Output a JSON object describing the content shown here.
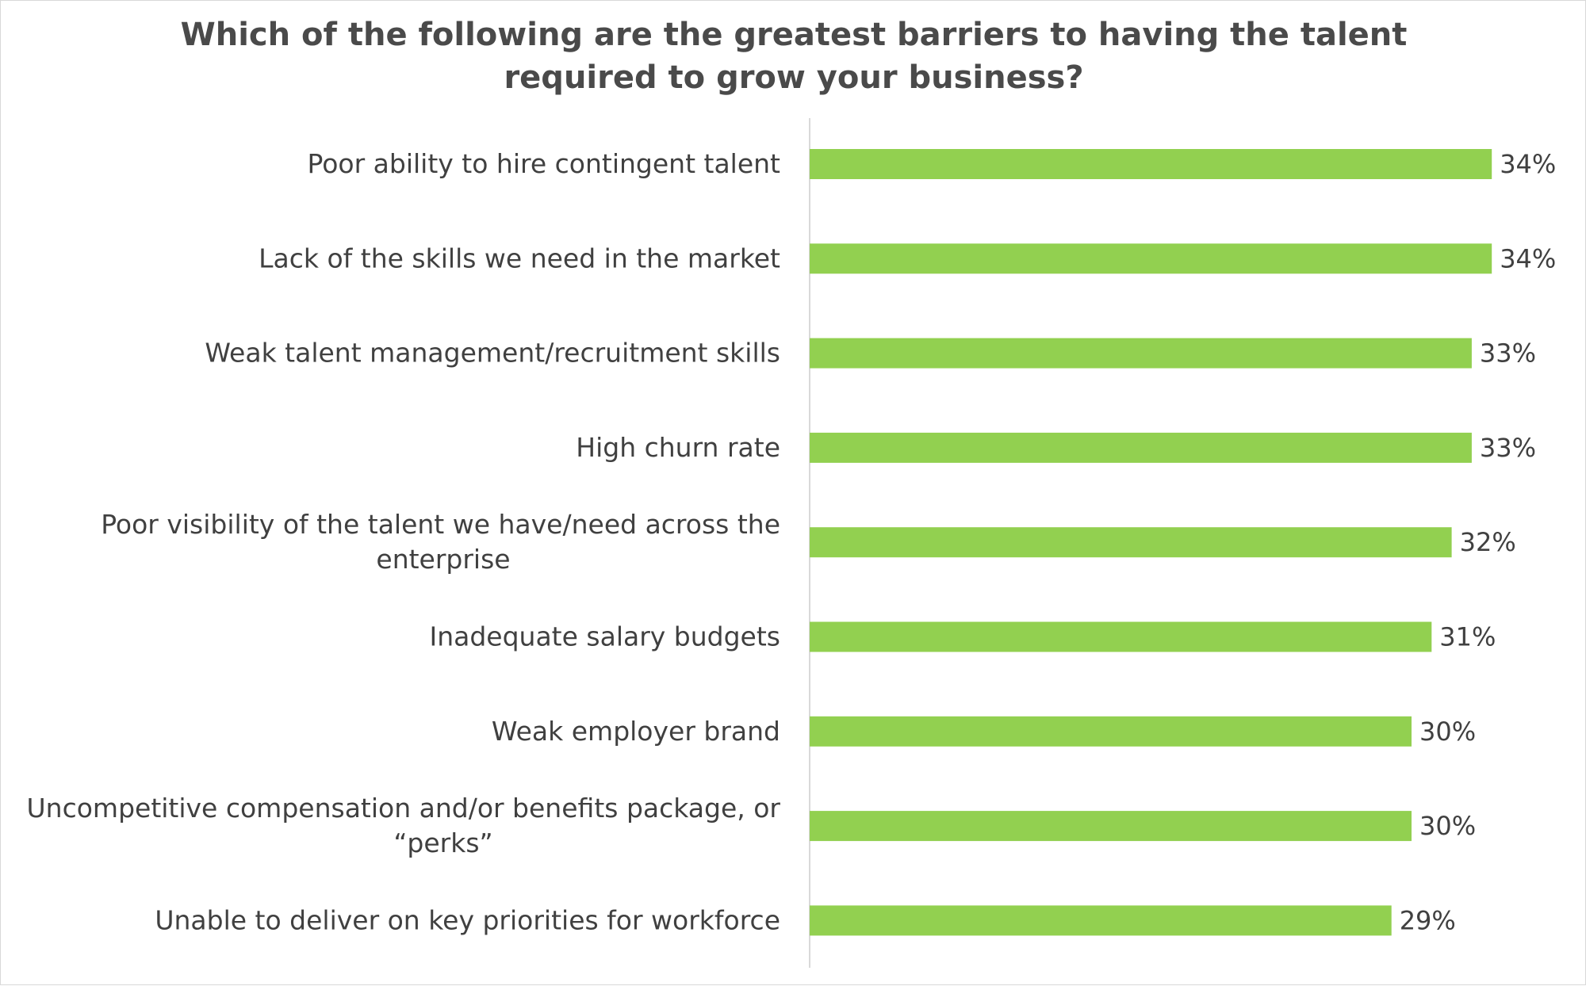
{
  "chart_data": {
    "type": "bar",
    "orientation": "horizontal",
    "title_lines": [
      "Which of the following are the greatest barriers to having the talent",
      "required to grow your business?"
    ],
    "categories": [
      "Poor ability to hire contingent talent",
      "Lack of the skills we need in the market",
      "Weak talent management/recruitment skills",
      "High churn rate",
      "Poor visibility of the talent we have/need across the enterprise",
      "Inadequate salary budgets",
      "Weak employer brand",
      "Uncompetitive compensation and/or benefits package, or “perks”",
      "Unable to deliver on key priorities for workforce"
    ],
    "category_label_lines": [
      [
        "Poor ability to hire contingent talent"
      ],
      [
        "Lack of the skills we need in the market"
      ],
      [
        "Weak talent management/recruitment skills"
      ],
      [
        "High churn rate"
      ],
      [
        "Poor visibility of the talent we have/need across the",
        "enterprise"
      ],
      [
        "Inadequate salary budgets"
      ],
      [
        "Weak employer brand"
      ],
      [
        "Uncompetitive compensation and/or benefits package, or",
        "“perks”"
      ],
      [
        "Unable to deliver on key priorities for workforce"
      ]
    ],
    "values": [
      34,
      34,
      33,
      33,
      32,
      31,
      30,
      30,
      29
    ],
    "value_labels": [
      "34%",
      "34%",
      "33%",
      "33%",
      "32%",
      "31%",
      "30%",
      "30%",
      "29%"
    ],
    "unit": "%",
    "bar_color": "#92d050",
    "xlim": [
      0,
      34
    ],
    "grid": false,
    "legend": "none"
  }
}
